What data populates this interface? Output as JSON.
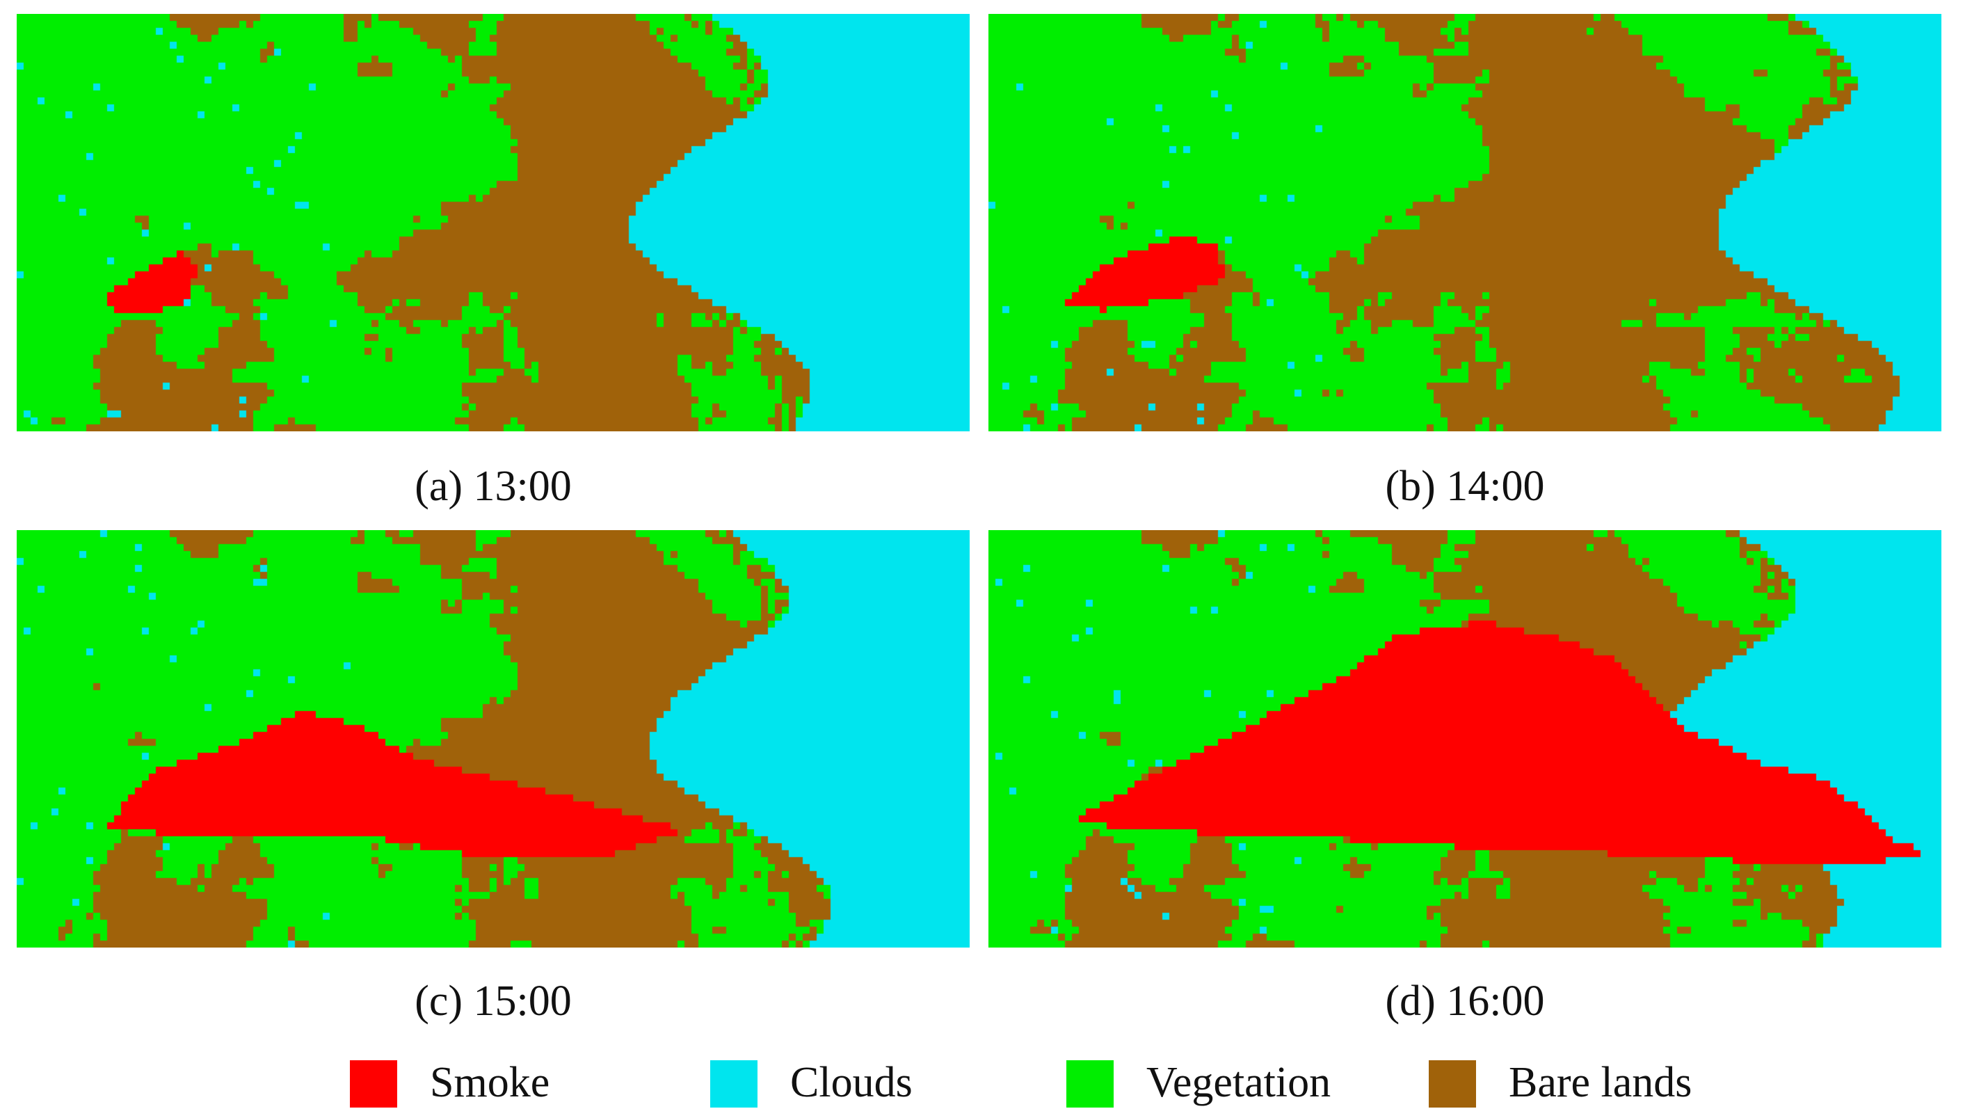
{
  "panels": [
    {
      "id": "a",
      "caption": "(a) 13:00"
    },
    {
      "id": "b",
      "caption": "(b) 14:00"
    },
    {
      "id": "c",
      "caption": "(c) 15:00"
    },
    {
      "id": "d",
      "caption": "(d) 16:00"
    }
  ],
  "legend": [
    {
      "key": "smoke",
      "label": "Smoke",
      "color": "#ff0000"
    },
    {
      "key": "clouds",
      "label": "Clouds",
      "color": "#00e5ee"
    },
    {
      "key": "vegetation",
      "label": "Vegetation",
      "color": "#00ee00"
    },
    {
      "key": "bare",
      "label": "Bare lands",
      "color": "#a0620a"
    }
  ]
}
